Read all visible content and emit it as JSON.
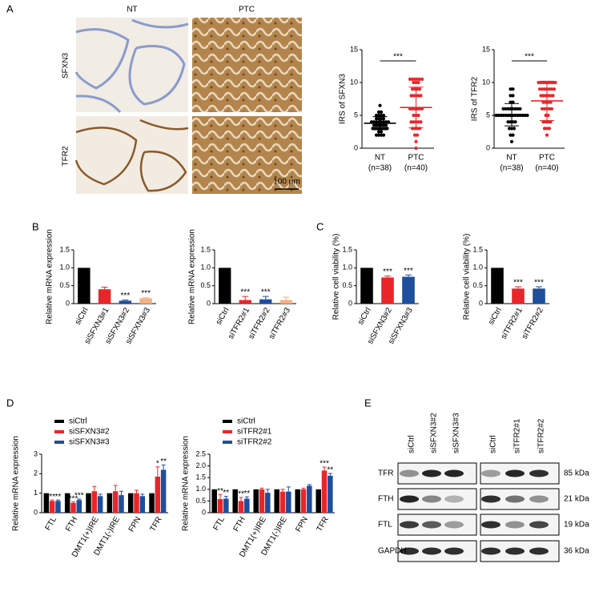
{
  "panel_labels": [
    "A",
    "B",
    "C",
    "D",
    "E"
  ],
  "micrographs": {
    "columns": [
      "NT",
      "PTC"
    ],
    "rows": [
      "SFXN3",
      "TFR2"
    ],
    "scale_bar": "100 μm"
  },
  "chart_data": [
    {
      "type": "scatter",
      "y_label": "IRS of SFXN3",
      "categories": [
        "NT",
        "PTC"
      ],
      "group_sizes": [
        "(n=38)",
        "(n=40)"
      ],
      "colors": [
        "#000000",
        "#e8262a"
      ],
      "points": [
        [
          2,
          2,
          2,
          2,
          2.5,
          2.5,
          3,
          3,
          3,
          3,
          3,
          3,
          3.5,
          3.5,
          3.5,
          3.5,
          3.5,
          3.5,
          4,
          4,
          4,
          4,
          4,
          4,
          4,
          4,
          4.5,
          4.5,
          4.5,
          4.5,
          5,
          5,
          5,
          5,
          5.5,
          5.5,
          6.5,
          3
        ],
        [
          0,
          1,
          2,
          2,
          3,
          3,
          3,
          3,
          4,
          4,
          4,
          4,
          4,
          5,
          5,
          5,
          6,
          6,
          6,
          6,
          6,
          6,
          8,
          8,
          8,
          8,
          8,
          9,
          9,
          9,
          9,
          10,
          10,
          10,
          10.5,
          10.5,
          10.5,
          10.5,
          10.5,
          10.5
        ]
      ],
      "mean": [
        3.8,
        6.2
      ],
      "sd": [
        1.0,
        3.1
      ],
      "annotation": "***",
      "ylim": [
        0,
        15
      ],
      "yticks": [
        0,
        5,
        10,
        15
      ]
    },
    {
      "type": "scatter",
      "y_label": "IRS of TFR2",
      "categories": [
        "NT",
        "PTC"
      ],
      "group_sizes": [
        "(n=38)",
        "(n=40)"
      ],
      "colors": [
        "#000000",
        "#e8262a"
      ],
      "points": [
        [
          1,
          2,
          2,
          3,
          3,
          3,
          4,
          4,
          4,
          4,
          5,
          5,
          5,
          5,
          5,
          5,
          5,
          5,
          5,
          5,
          5,
          5,
          5,
          5,
          6,
          6,
          6,
          6,
          6,
          6,
          6,
          6,
          7,
          7,
          8,
          8,
          9,
          9
        ],
        [
          2,
          3,
          3,
          3,
          4,
          4,
          4,
          4,
          5,
          5,
          6,
          6,
          6,
          6,
          7,
          7,
          7,
          7,
          8,
          8,
          8,
          8,
          8,
          8,
          9,
          9,
          9,
          9,
          9,
          9,
          9,
          10,
          10,
          10,
          10,
          10,
          10,
          10,
          10,
          6
        ]
      ],
      "mean": [
        5.1,
        7.2
      ],
      "sd": [
        1.7,
        3.0
      ],
      "annotation": "***",
      "ylim": [
        0,
        15
      ],
      "yticks": [
        0,
        5,
        10,
        15
      ]
    },
    {
      "type": "bar",
      "y_label": "Relative mRNA expression",
      "categories": [
        "siCtrl",
        "siSFXN3#1",
        "siSFXN3#2",
        "siSFXN3#3"
      ],
      "values": [
        1.0,
        0.4,
        0.08,
        0.15
      ],
      "errors": [
        0,
        0.06,
        0.02,
        0.02
      ],
      "annotations": [
        null,
        null,
        "***",
        "***"
      ],
      "colors": [
        "#000000",
        "#e8262a",
        "#1f4e9c",
        "#f4b183"
      ],
      "ylim": [
        0,
        1.5
      ],
      "yticks": [
        0,
        0.5,
        {
          "value": 1,
          "label": "1.0"
        },
        1.5
      ]
    },
    {
      "type": "bar",
      "y_label": "Relative mRNA expression",
      "categories": [
        "siCtrl",
        "siTFR2#1",
        "siTFR2#2",
        "siTFR2#3"
      ],
      "values": [
        1.0,
        0.1,
        0.12,
        0.1
      ],
      "errors": [
        0,
        0.1,
        0.08,
        0.08
      ],
      "annotations": [
        null,
        "***",
        "***",
        null
      ],
      "colors": [
        "#000000",
        "#e8262a",
        "#1f4e9c",
        "#f4b183"
      ],
      "ylim": [
        0,
        1.5
      ],
      "yticks": [
        0,
        0.5,
        {
          "value": 1,
          "label": "1.0"
        },
        1.5
      ]
    },
    {
      "type": "bar",
      "y_label": "Relative cell viability (%)",
      "categories": [
        "siCtrl",
        "siSFXN3#2",
        "siSFXN3#3"
      ],
      "values": [
        1.0,
        0.73,
        0.75
      ],
      "errors": [
        0,
        0.04,
        0.05
      ],
      "annotations": [
        null,
        "***",
        "***"
      ],
      "colors": [
        "#000000",
        "#e8262a",
        "#1f4e9c"
      ],
      "ylim": [
        0,
        1.5
      ],
      "yticks": [
        0,
        0.5,
        {
          "value": 1,
          "label": "1.0"
        },
        1.5
      ]
    },
    {
      "type": "bar",
      "y_label": "Relative cell viability (%)",
      "categories": [
        "siCtrl",
        "siTFR2#1",
        "siTFR2#2"
      ],
      "values": [
        1.0,
        0.42,
        0.42
      ],
      "errors": [
        0,
        0.05,
        0.05
      ],
      "annotations": [
        null,
        "***",
        "***"
      ],
      "colors": [
        "#000000",
        "#e8262a",
        "#1f4e9c"
      ],
      "ylim": [
        0,
        1.5
      ],
      "yticks": [
        0,
        0.5,
        {
          "value": 1,
          "label": "1.0"
        },
        1.5
      ]
    },
    {
      "type": "grouped_bar",
      "y_label": "Relative mRNA expression",
      "categories": [
        "FTL",
        "FTH",
        "DMT1(+)IRE",
        "DMT1(-)IRE",
        "FPN",
        "TFR"
      ],
      "series": [
        {
          "name": "siCtrl",
          "color": "#000000",
          "values": [
            1,
            1,
            1,
            1,
            1,
            1
          ],
          "errors": [
            0,
            0,
            0,
            0,
            0,
            0
          ],
          "annotations": [
            null,
            null,
            null,
            null,
            null,
            null
          ]
        },
        {
          "name": "siSFXN3#2",
          "color": "#e8262a",
          "values": [
            0.6,
            0.5,
            1.1,
            1.1,
            1.0,
            1.85
          ],
          "errors": [
            0.05,
            0.05,
            0.25,
            0.3,
            0.15,
            0.5
          ],
          "annotations": [
            "**",
            "***",
            null,
            null,
            null,
            "*"
          ]
        },
        {
          "name": "siSFXN3#3",
          "color": "#1f4e9c",
          "values": [
            0.6,
            0.65,
            0.85,
            0.9,
            0.85,
            2.2
          ],
          "errors": [
            0.05,
            0.05,
            0.1,
            0.2,
            0.1,
            0.25
          ],
          "annotations": [
            "**",
            "***",
            null,
            null,
            null,
            "**"
          ]
        }
      ],
      "ylim": [
        0,
        3
      ],
      "yticks": [
        0,
        1,
        2,
        3
      ]
    },
    {
      "type": "grouped_bar",
      "y_label": "Relative mRNA expression",
      "categories": [
        "FTL",
        "FTH",
        "DMT1(+)IRE",
        "DMT1(-)IRE",
        "FPN",
        "TFR"
      ],
      "series": [
        {
          "name": "siCtrl",
          "color": "#000000",
          "values": [
            1,
            1,
            1,
            1,
            1,
            1
          ],
          "errors": [
            0,
            0,
            0,
            0,
            0,
            0
          ],
          "annotations": [
            null,
            null,
            null,
            null,
            null,
            null
          ]
        },
        {
          "name": "siTFR2#1",
          "color": "#e8262a",
          "values": [
            0.58,
            0.5,
            1.0,
            0.9,
            1.0,
            1.8
          ],
          "errors": [
            0.2,
            0.15,
            0.05,
            0.1,
            0.05,
            0.15
          ],
          "annotations": [
            "**",
            "**",
            null,
            null,
            null,
            "***"
          ]
        },
        {
          "name": "siTFR2#2",
          "color": "#1f4e9c",
          "values": [
            0.6,
            0.6,
            0.85,
            0.9,
            1.15,
            1.58
          ],
          "errors": [
            0.1,
            0.08,
            0.15,
            0.2,
            0.05,
            0.1
          ],
          "annotations": [
            "**",
            "**",
            null,
            null,
            null,
            "**"
          ]
        }
      ],
      "ylim": [
        0,
        2.5
      ],
      "yticks": [
        0,
        0.5,
        {
          "value": 1,
          "label": "1.0"
        },
        1.5,
        {
          "value": 2,
          "label": "2.0"
        },
        2.5
      ]
    }
  ],
  "blot": {
    "lanes": [
      "siCtrl",
      "siSFXN3#2",
      "siSFXN3#3",
      "siCtrl",
      "siTFR2#1",
      "siTFR2#2"
    ],
    "proteins": [
      "TFR",
      "FTH",
      "FTL",
      "GAPDH"
    ],
    "sizes": [
      "85 kDa",
      "21 kDa",
      "19 kDa",
      "36 kDa"
    ]
  }
}
